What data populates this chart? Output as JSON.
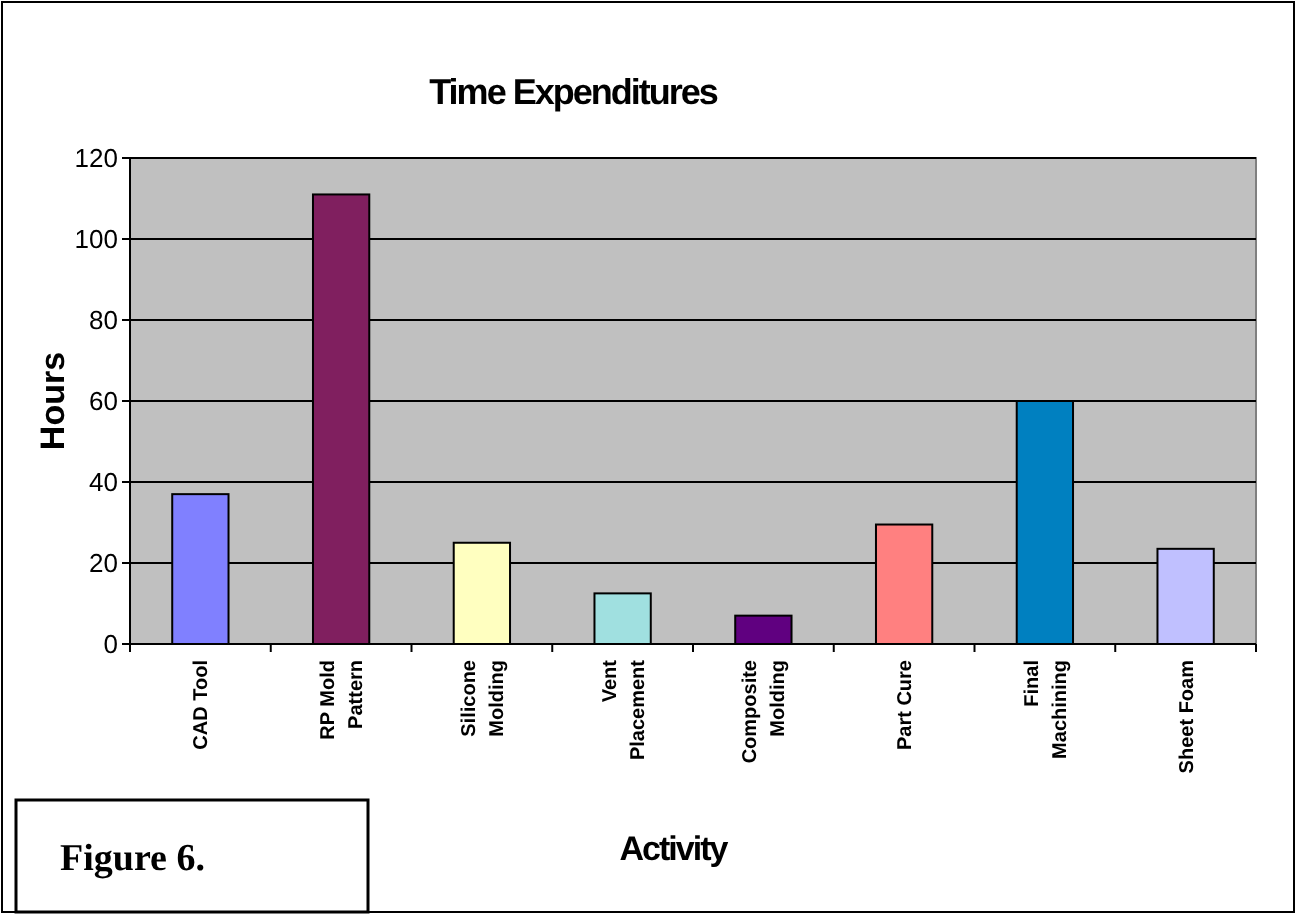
{
  "chart_data": {
    "type": "bar",
    "title": "Time Expenditures",
    "xlabel": "Activity",
    "ylabel": "Hours",
    "categories": [
      "CAD Tool",
      "RP Mold Pattern",
      "Silicone Molding",
      "Vent Placement",
      "Composite Molding",
      "Part Cure",
      "Final Machining",
      "Sheet Foam"
    ],
    "values": [
      37,
      111,
      25,
      12.5,
      7,
      29.5,
      60,
      23.5
    ],
    "colors": [
      "#8080ff",
      "#801f5f",
      "#ffffc0",
      "#a0e0e0",
      "#600080",
      "#ff8080",
      "#0080c0",
      "#c0c0ff"
    ],
    "ylim": [
      0,
      120
    ],
    "yticks": [
      0,
      20,
      40,
      60,
      80,
      100,
      120
    ],
    "grid": "y",
    "annotations": [
      "Figure 6."
    ]
  }
}
